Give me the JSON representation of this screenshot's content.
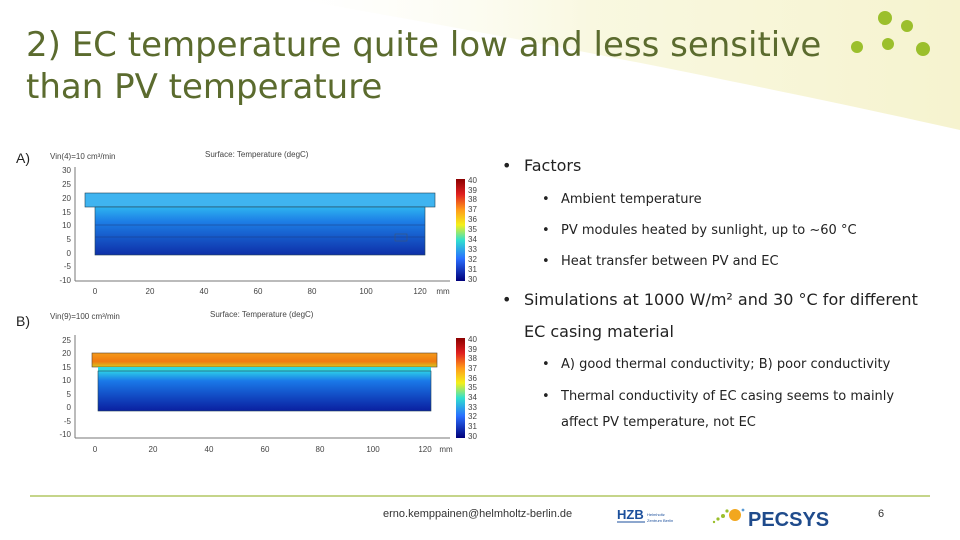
{
  "slide": {
    "title_line1": "2) EC temperature quite low and less sensitive",
    "title_line2": "than PV temperature",
    "accent_color": "#9bbf2c",
    "title_color": "#5b6b2e"
  },
  "panel_a": {
    "label": "A)",
    "flow_label": "Vin(4)=10 cm³/min",
    "surface_label": "Surface: Temperature (degC)",
    "y_ticks": [
      "30",
      "25",
      "20",
      "15",
      "10",
      "5",
      "0",
      "-5",
      "-10"
    ],
    "x_ticks": [
      "0",
      "20",
      "40",
      "60",
      "80",
      "100",
      "120"
    ],
    "x_unit": "mm",
    "colorbar_ticks": [
      "40",
      "39",
      "38",
      "37",
      "36",
      "35",
      "34",
      "33",
      "32",
      "31",
      "30"
    ]
  },
  "panel_b": {
    "label": "B)",
    "flow_label": "Vin(9)=100 cm³/min",
    "surface_label": "Surface: Temperature (degC)",
    "y_ticks": [
      "25",
      "20",
      "15",
      "10",
      "5",
      "0",
      "-5",
      "-10"
    ],
    "x_ticks": [
      "0",
      "20",
      "40",
      "60",
      "80",
      "100",
      "120"
    ],
    "x_unit": "mm",
    "colorbar_ticks": [
      "40",
      "39",
      "38",
      "37",
      "36",
      "35",
      "34",
      "33",
      "32",
      "31",
      "30"
    ]
  },
  "bullets": {
    "factors": "Factors",
    "ambient": "Ambient temperature",
    "pv_heated": "PV modules heated by sunlight, up to ~60 °C",
    "heat_transfer": "Heat transfer between PV and EC",
    "simulations": "Simulations at 1000 W/m² and 30 °C for different EC casing material",
    "conductivity": "A) good thermal conductivity; B) poor conductivity",
    "thermal": "Thermal conductivity of EC casing seems to mainly affect PV temperature, not EC"
  },
  "footer": {
    "email": "erno.kemppainen@helmholtz-berlin.de",
    "page": "6",
    "hzb_text": "HZB",
    "hzb_sub1": "Helmholtz",
    "hzb_sub2": "Zentrum Berlin",
    "pecsys_text": "PECSYS"
  }
}
